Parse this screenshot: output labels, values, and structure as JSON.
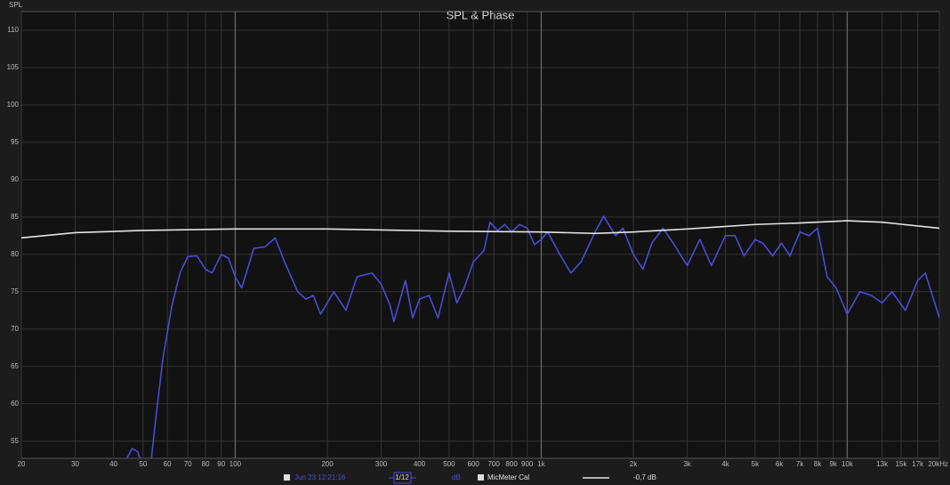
{
  "chart_data": {
    "type": "line",
    "title": "SPL & Phase",
    "y_label": "SPL",
    "xscale": "log",
    "grid": true,
    "xlim": [
      20,
      20000
    ],
    "ylim": [
      52.7,
      112.5
    ],
    "yticks": [
      55,
      60,
      65,
      70,
      75,
      80,
      85,
      90,
      95,
      100,
      105,
      110
    ],
    "xticks": [
      20,
      30,
      40,
      50,
      60,
      70,
      80,
      90,
      100,
      200,
      300,
      400,
      500,
      600,
      700,
      800,
      900,
      {
        "value": 1000,
        "label": "1k"
      },
      {
        "value": 2000,
        "label": "2k"
      },
      {
        "value": 3000,
        "label": "3k"
      },
      {
        "value": 4000,
        "label": "4k"
      },
      {
        "value": 5000,
        "label": "5k"
      },
      {
        "value": 6000,
        "label": "6k"
      },
      {
        "value": 7000,
        "label": "7k"
      },
      {
        "value": 8000,
        "label": "8k"
      },
      {
        "value": 9000,
        "label": "9k"
      },
      {
        "value": 10000,
        "label": "10k"
      },
      {
        "value": 13000,
        "label": "13k"
      },
      {
        "value": 15000,
        "label": "15k"
      },
      {
        "value": 17000,
        "label": "17k"
      },
      {
        "value": 20000,
        "label": "20kHz"
      }
    ],
    "series": [
      {
        "name": "Jun 23 12:21:16",
        "color": "#4b4bd6",
        "x": [
          44,
          46,
          48,
          50,
          53,
          55,
          58,
          62,
          66,
          70,
          75,
          80,
          84,
          90,
          95,
          100,
          105,
          115,
          125,
          135,
          145,
          160,
          170,
          180,
          190,
          210,
          230,
          250,
          280,
          300,
          320,
          330,
          360,
          380,
          400,
          430,
          460,
          500,
          530,
          560,
          600,
          650,
          680,
          720,
          760,
          800,
          850,
          900,
          950,
          1000,
          1050,
          1150,
          1250,
          1350,
          1500,
          1600,
          1750,
          1850,
          2000,
          2150,
          2300,
          2500,
          2700,
          3000,
          3300,
          3600,
          4000,
          4300,
          4600,
          5000,
          5300,
          5700,
          6100,
          6500,
          7000,
          7500,
          8000,
          8600,
          9200,
          10000,
          11000,
          12000,
          13000,
          14000,
          15500,
          17000,
          18000,
          20000
        ],
        "values": [
          52.5,
          54.0,
          53.6,
          51.5,
          52.0,
          58,
          66,
          73,
          77.5,
          79.7,
          79.8,
          78,
          77.5,
          80.0,
          79.5,
          77,
          75.5,
          80.8,
          81.0,
          82.2,
          79,
          75,
          74,
          74.5,
          72,
          75,
          72.5,
          77,
          77.5,
          76,
          73.3,
          71,
          76.5,
          71.5,
          74,
          74.5,
          71.5,
          77.5,
          73.5,
          75.5,
          79,
          80.5,
          84.3,
          83.2,
          84,
          83,
          84.0,
          83.5,
          81.3,
          82,
          83,
          80,
          77.5,
          79,
          83,
          85.1,
          82.5,
          83.5,
          80,
          78,
          81.5,
          83.5,
          81.5,
          78.5,
          82,
          78.5,
          82.5,
          82.5,
          79.8,
          82,
          81.5,
          79.8,
          81.5,
          79.8,
          83,
          82.5,
          83.5,
          77,
          75.5,
          72,
          75,
          74.5,
          73.5,
          75,
          72.5,
          76.5,
          77.5,
          71.5
        ]
      },
      {
        "name": "MicMeter Cal",
        "color": "#e4e4e4",
        "x": [
          20,
          30,
          50,
          100,
          200,
          500,
          1000,
          1500,
          2000,
          3000,
          5000,
          7000,
          10000,
          13000,
          20000
        ],
        "values": [
          82.2,
          82.9,
          83.2,
          83.4,
          83.4,
          83.1,
          83.0,
          82.8,
          83.0,
          83.4,
          84.0,
          84.2,
          84.5,
          84.3,
          83.5
        ]
      }
    ],
    "legend": {
      "smoothing": "1/12",
      "unit": "dB",
      "offset": "-0,7 dB"
    }
  }
}
